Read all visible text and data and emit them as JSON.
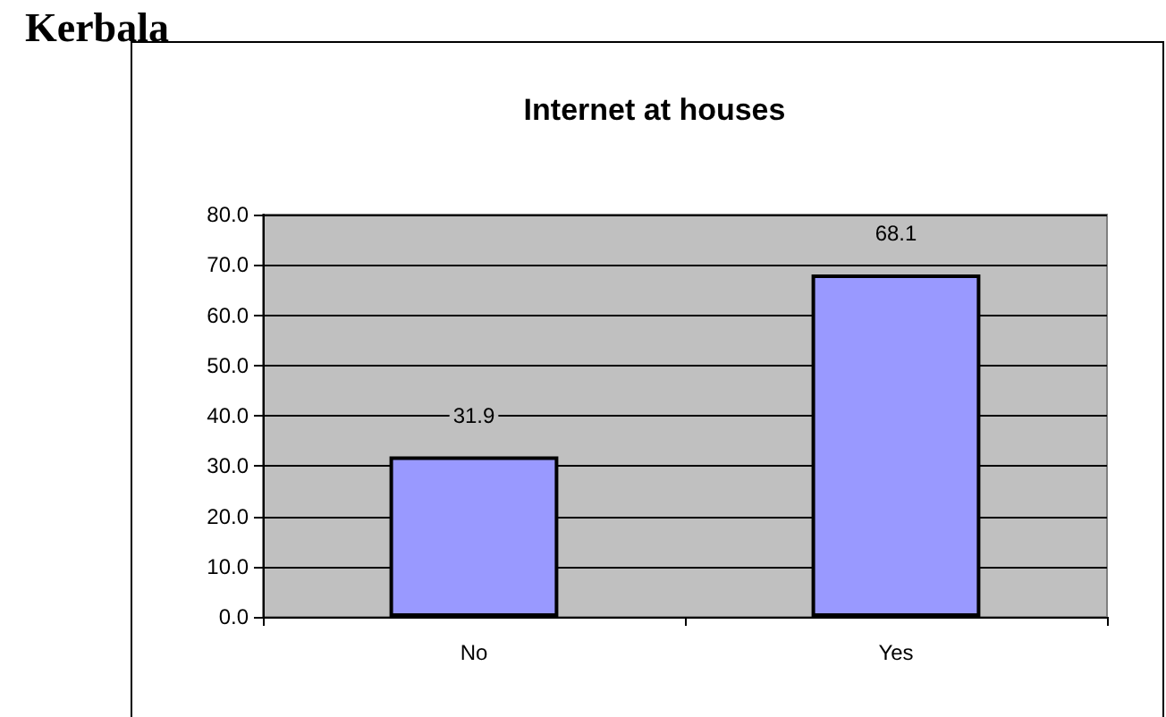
{
  "chart_data": {
    "type": "bar",
    "title": "Internet at houses",
    "annotations": [
      "Kerbala"
    ],
    "categories": [
      "No",
      "Yes"
    ],
    "values": [
      31.9,
      68.1
    ],
    "color": "#9999ff",
    "ylim": [
      0,
      80
    ],
    "yticks": [
      {
        "value": 0,
        "label": "0.0"
      },
      {
        "value": 10,
        "label": "10.0"
      },
      {
        "value": 20,
        "label": "20.0"
      },
      {
        "value": 30,
        "label": "30.0"
      },
      {
        "value": 40,
        "label": "40.0"
      },
      {
        "value": 50,
        "label": "50.0"
      },
      {
        "value": 60,
        "label": "60.0"
      },
      {
        "value": 70,
        "label": "70.0"
      },
      {
        "value": 80,
        "label": "80.0"
      }
    ],
    "grid": "y",
    "data_labels": true
  }
}
